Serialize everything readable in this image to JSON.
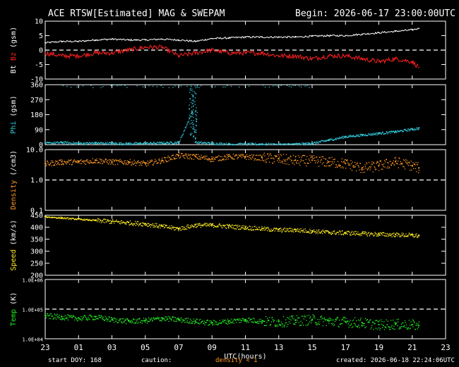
{
  "header": {
    "title": "ACE RTSW[Estimated] MAG & SWEPAM",
    "begin": "Begin: 2026-06-17 23:00:00UTC"
  },
  "footer": {
    "start_doy": "start DOY: 168",
    "caution_label": "caution:",
    "caution_value": "density < 1",
    "created": "created: 2026-06-18 22:24:06UTC"
  },
  "x_axis": {
    "label": "UTC(hours)",
    "ticks": [
      "23",
      "01",
      "03",
      "05",
      "07",
      "09",
      "11",
      "13",
      "15",
      "17",
      "19",
      "21",
      "23"
    ],
    "range_hours": [
      0,
      24
    ]
  },
  "colors": {
    "bt": "#ffffff",
    "bz": "#ff2020",
    "phi": "#33ccdd",
    "density": "#ff9922",
    "speed": "#ffee22",
    "temp": "#22ee22",
    "frame": "#ffffff",
    "caution": "#ff9922"
  },
  "chart_data": [
    {
      "type": "line",
      "panel": "mag",
      "ylabel_parts": [
        "Bt",
        "Bz",
        "(gsm)"
      ],
      "ylim": [
        -10,
        10
      ],
      "yticks": [
        "10",
        "5",
        "0",
        "-5",
        "-10"
      ],
      "ytick_values": [
        10,
        5,
        0,
        -5,
        -10
      ],
      "reference_line": 0,
      "series": [
        {
          "name": "Bt",
          "color_key": "bt",
          "x": [
            0,
            1,
            2,
            3,
            4,
            5,
            6,
            7,
            8,
            9,
            10,
            11,
            12,
            13,
            14,
            15,
            16,
            17,
            18,
            19,
            20,
            21,
            22,
            22.4
          ],
          "values": [
            2.5,
            3,
            3,
            3.5,
            3.8,
            3.5,
            3.5,
            3.8,
            3.5,
            3,
            4,
            4.2,
            4.5,
            4.5,
            4.5,
            4.5,
            4.8,
            5,
            5,
            5.5,
            6,
            6.5,
            7,
            7.5
          ]
        },
        {
          "name": "Bz",
          "color_key": "bz",
          "x": [
            0,
            1,
            2,
            3,
            4,
            5,
            6,
            7,
            8,
            9,
            10,
            11,
            12,
            13,
            14,
            15,
            16,
            17,
            18,
            19,
            20,
            21,
            22,
            22.4
          ],
          "values": [
            -1,
            -2,
            -2,
            -1,
            -1,
            0,
            1,
            1,
            -2,
            -1,
            0,
            -1,
            -1,
            -1,
            -2,
            -2,
            -3,
            -2,
            -2,
            -3,
            -4,
            -3,
            -4,
            -6
          ]
        }
      ]
    },
    {
      "type": "scatter",
      "panel": "phi",
      "ylabel_parts": [
        "Phi",
        "(gsm)"
      ],
      "ylim": [
        0,
        360
      ],
      "yticks": [
        "360",
        "270",
        "180",
        "90",
        "0"
      ],
      "ytick_values": [
        360,
        270,
        180,
        90,
        0
      ],
      "series": [
        {
          "name": "Phi",
          "color_key": "phi",
          "x": [
            0,
            1,
            2,
            3,
            4,
            5,
            6,
            7,
            8,
            8.8,
            9,
            10,
            11,
            12,
            13,
            14,
            15,
            16,
            17,
            18,
            19,
            20,
            21,
            22,
            22.4
          ],
          "values": [
            10,
            15,
            10,
            12,
            10,
            8,
            10,
            12,
            15,
            200,
            15,
            10,
            5,
            5,
            5,
            3,
            5,
            10,
            30,
            50,
            60,
            70,
            80,
            95,
            100
          ]
        }
      ]
    },
    {
      "type": "scatter",
      "panel": "density",
      "ylabel_parts": [
        "Density",
        "(/cm3)"
      ],
      "yscale": "log",
      "ylim": [
        0.1,
        10
      ],
      "yticks": [
        "10.0",
        "1.0",
        "0.1"
      ],
      "ytick_values": [
        10,
        1,
        0.1
      ],
      "reference_line": 1,
      "series": [
        {
          "name": "Density",
          "color_key": "density",
          "x": [
            0,
            1,
            2,
            3,
            4,
            5,
            6,
            7,
            8,
            9,
            10,
            11,
            12,
            13,
            14,
            15,
            16,
            17,
            18,
            19,
            20,
            21,
            22,
            22.4
          ],
          "values": [
            3.5,
            4,
            4,
            4.5,
            4,
            4,
            3.5,
            4.5,
            6.5,
            6,
            5,
            6,
            6,
            5.5,
            5,
            4.5,
            4.5,
            4,
            3.5,
            2.5,
            3,
            4,
            3,
            2.5
          ]
        }
      ]
    },
    {
      "type": "scatter",
      "panel": "speed",
      "ylabel_parts": [
        "Speed",
        "(km/s)"
      ],
      "ylim": [
        200,
        450
      ],
      "yticks": [
        "450",
        "400",
        "350",
        "300",
        "250",
        "200"
      ],
      "ytick_values": [
        450,
        400,
        350,
        300,
        250,
        200
      ],
      "series": [
        {
          "name": "Speed",
          "color_key": "speed",
          "x": [
            0,
            1,
            2,
            3,
            4,
            5,
            6,
            7,
            8,
            9,
            10,
            11,
            12,
            13,
            14,
            15,
            16,
            17,
            18,
            19,
            20,
            21,
            22,
            22.4
          ],
          "values": [
            445,
            440,
            435,
            430,
            425,
            420,
            415,
            405,
            395,
            410,
            410,
            405,
            400,
            395,
            390,
            390,
            385,
            380,
            378,
            375,
            372,
            370,
            368,
            365
          ]
        }
      ]
    },
    {
      "type": "scatter",
      "panel": "temp",
      "ylabel_parts": [
        "Temp",
        "(K)"
      ],
      "yscale": "log",
      "ylim": [
        10000,
        1000000
      ],
      "yticks": [
        "1.0E+06",
        "1.0E+05",
        "1.0E+04"
      ],
      "ytick_values": [
        1000000,
        100000,
        10000
      ],
      "reference_line": 100000,
      "series": [
        {
          "name": "Temp",
          "color_key": "temp",
          "x": [
            0,
            1,
            2,
            3,
            4,
            5,
            6,
            7,
            8,
            9,
            10,
            11,
            12,
            13,
            14,
            15,
            16,
            17,
            18,
            19,
            20,
            21,
            22,
            22.4
          ],
          "values": [
            60000,
            55000,
            50000,
            55000,
            45000,
            40000,
            42000,
            50000,
            45000,
            40000,
            35000,
            40000,
            45000,
            40000,
            38000,
            42000,
            45000,
            40000,
            38000,
            35000,
            30000,
            32000,
            30000,
            28000
          ]
        }
      ]
    }
  ]
}
